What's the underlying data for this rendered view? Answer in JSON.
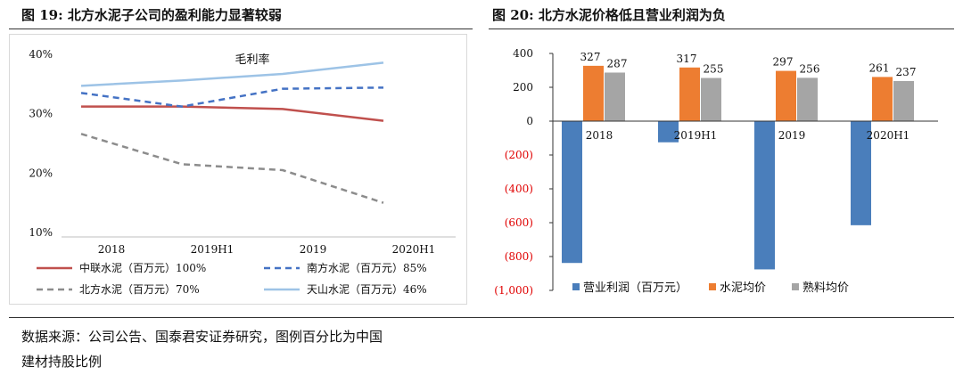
{
  "figures": [
    {
      "title": "图 19:  北方水泥子公司的盈利能力显著较弱"
    },
    {
      "title": "图 20:  北方水泥价格低且营业利润为负"
    }
  ],
  "source_lines": [
    "数据来源：公司公告、国泰君安证券研究，图例百分比为中国",
    "建材持股比例"
  ],
  "colors": {
    "red": "#c0504d",
    "blue": "#4472c4",
    "gray": "#8c8c8c",
    "lightblue": "#9dc3e6",
    "orange": "#ed7d31",
    "barblue": "#4a7ebb",
    "bargray": "#a5a5a5"
  },
  "chart_data": [
    {
      "type": "line",
      "title": "毛利率",
      "categories": [
        "2018",
        "2019H1",
        "2019",
        "2020H1"
      ],
      "yticks": [
        "40%",
        "30%",
        "20%",
        "10%"
      ],
      "ylim": [
        10,
        40
      ],
      "grid": false,
      "legend_position": "bottom",
      "series": [
        {
          "name": "中联水泥（百万元）100%",
          "values": [
            31.2,
            31.2,
            30.8,
            28.8
          ],
          "color": "#c0504d",
          "dash": "solid"
        },
        {
          "name": "南方水泥（百万元）85%",
          "values": [
            33.5,
            31.2,
            34.2,
            34.4
          ],
          "color": "#4472c4",
          "dash": "dashed"
        },
        {
          "name": "北方水泥（百万元）70%",
          "values": [
            26.6,
            21.5,
            20.5,
            15.0
          ],
          "color": "#8c8c8c",
          "dash": "dashed"
        },
        {
          "name": "天山水泥（百万元）46%",
          "values": [
            34.7,
            35.6,
            36.7,
            38.6
          ],
          "color": "#9dc3e6",
          "dash": "solid"
        }
      ]
    },
    {
      "type": "bar",
      "categories": [
        "2018",
        "2019H1",
        "2019",
        "2020H1"
      ],
      "yticks": [
        "400",
        "200",
        "0",
        "(200)",
        "(400)",
        "(600)",
        "(800)",
        "(1,000)"
      ],
      "ylim": [
        -1000,
        400
      ],
      "grid": false,
      "legend_position": "bottom",
      "series": [
        {
          "name": "营业利润（百万元）",
          "values": [
            -838,
            -125,
            -876,
            -615
          ],
          "color": "#4a7ebb",
          "labels": [
            "",
            "",
            "",
            ""
          ]
        },
        {
          "name": "水泥均价",
          "values": [
            327,
            317,
            297,
            261
          ],
          "color": "#ed7d31",
          "labels": [
            "327",
            "317",
            "297",
            "261"
          ]
        },
        {
          "name": "熟料均价",
          "values": [
            287,
            255,
            256,
            237
          ],
          "color": "#a5a5a5",
          "labels": [
            "287",
            "255",
            "256",
            "237"
          ]
        }
      ]
    }
  ]
}
